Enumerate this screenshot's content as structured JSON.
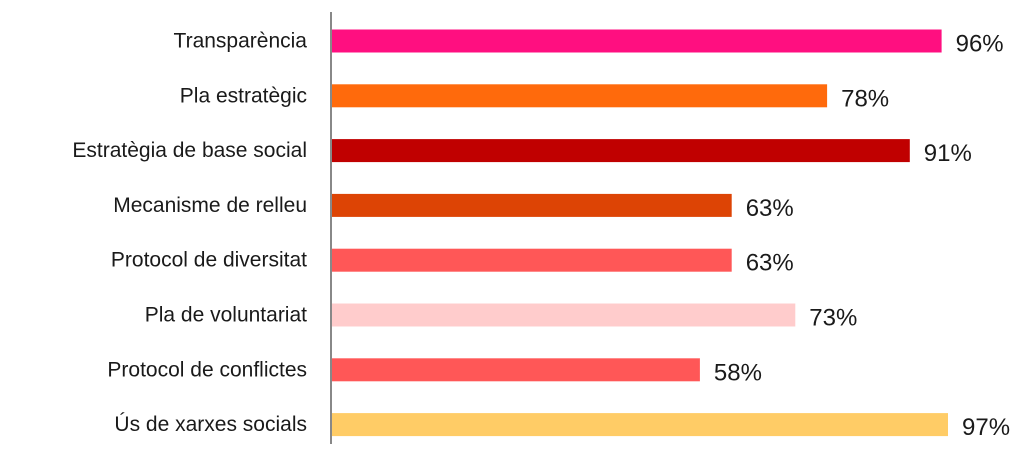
{
  "chart_data": {
    "type": "bar",
    "orientation": "horizontal",
    "title": "",
    "xlabel": "",
    "ylabel": "",
    "xlim": [
      0,
      100
    ],
    "grid": false,
    "legend": "none",
    "value_suffix": "%",
    "categories": [
      "Transparència",
      "Pla estratègic",
      "Estratègia de base social",
      "Mecanisme de relleu",
      "Protocol de diversitat",
      "Pla de voluntariat",
      "Protocol de conflictes",
      "Ús de xarxes socials"
    ],
    "values": [
      96,
      78,
      91,
      63,
      63,
      73,
      58,
      97
    ],
    "value_labels": [
      "96%",
      "78%",
      "91%",
      "63%",
      "63%",
      "73%",
      "58%",
      "97%"
    ],
    "colors": [
      "#FF0F80",
      "#FF6A0C",
      "#C00000",
      "#DD4405",
      "#FF5757",
      "#FFCCCC",
      "#FF5757",
      "#FFCC66"
    ],
    "axis_color": "#888888",
    "label_color": "#1a1a1a"
  }
}
